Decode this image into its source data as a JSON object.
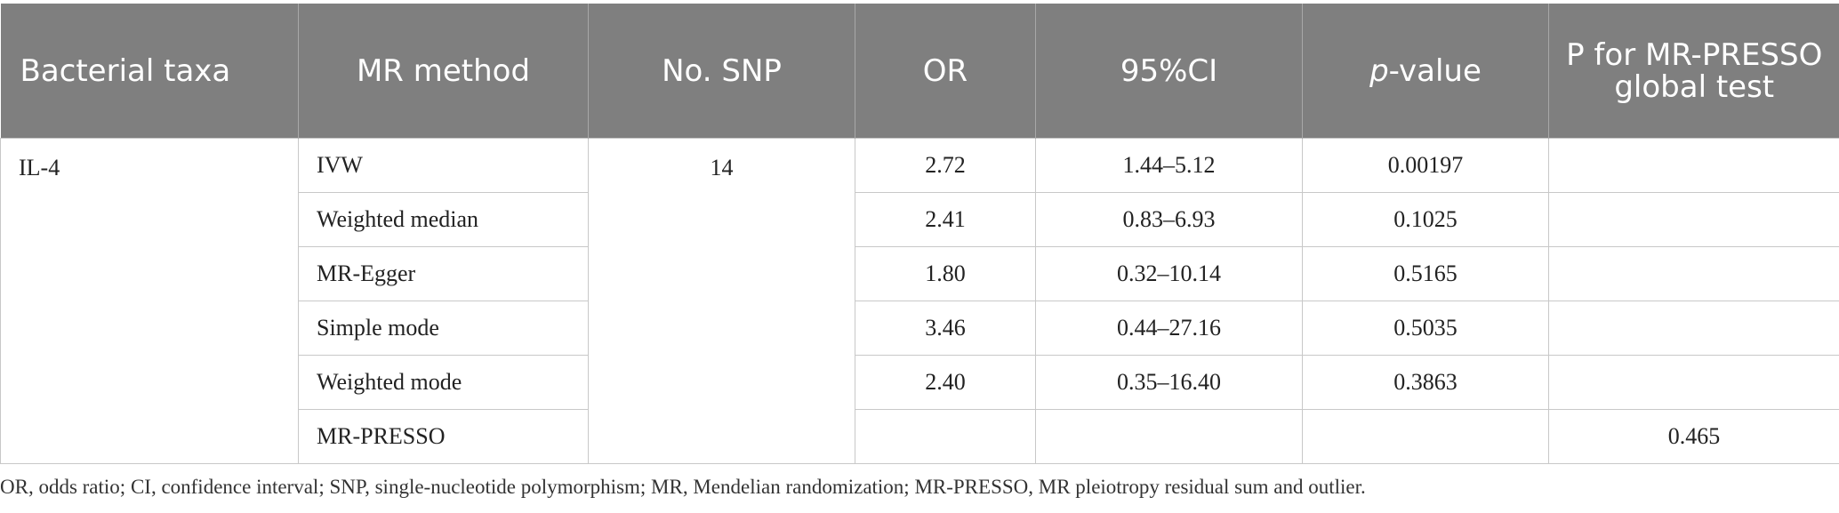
{
  "table": {
    "headers": {
      "taxa": "Bacterial taxa",
      "method": "MR method",
      "snp": "No. SNP",
      "or": "OR",
      "ci": "95%CI",
      "p_prefix": "p",
      "p_suffix": "-value",
      "presso": "P for MR-PRESSO global test"
    },
    "taxon": "IL-4",
    "snp_count": "14",
    "rows": [
      {
        "method": "IVW",
        "or": "2.72",
        "ci": "1.44–5.12",
        "p": "0.00197",
        "presso": ""
      },
      {
        "method": "Weighted median",
        "or": "2.41",
        "ci": "0.83–6.93",
        "p": "0.1025",
        "presso": ""
      },
      {
        "method": "MR-Egger",
        "or": "1.80",
        "ci": "0.32–10.14",
        "p": "0.5165",
        "presso": ""
      },
      {
        "method": "Simple mode",
        "or": "3.46",
        "ci": "0.44–27.16",
        "p": "0.5035",
        "presso": ""
      },
      {
        "method": "Weighted mode",
        "or": "2.40",
        "ci": "0.35–16.40",
        "p": "0.3863",
        "presso": ""
      },
      {
        "method": "MR-PRESSO",
        "or": "",
        "ci": "",
        "p": "",
        "presso": "0.465"
      }
    ]
  },
  "footnote": "OR, odds ratio; CI, confidence interval; SNP, single-nucleotide polymorphism; MR, Mendelian randomization; MR-PRESSO, MR pleiotropy residual sum and outlier."
}
